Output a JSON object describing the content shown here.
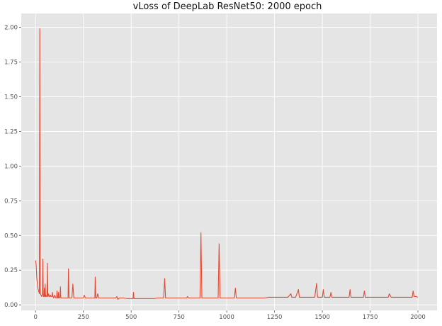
{
  "chart_data": {
    "type": "line",
    "title": "vLoss of DeepLab ResNet50: 2000 epoch",
    "xlabel": "",
    "ylabel": "",
    "xlim": [
      -75,
      2100
    ],
    "ylim": [
      -0.04,
      2.1
    ],
    "x_ticks": [
      0,
      250,
      500,
      750,
      1000,
      1250,
      1500,
      1750,
      2000
    ],
    "x_tick_labels": [
      "0",
      "250",
      "500",
      "750",
      "1000",
      "1250",
      "1500",
      "1750",
      "2000"
    ],
    "y_ticks": [
      0.0,
      0.25,
      0.5,
      0.75,
      1.0,
      1.25,
      1.5,
      1.75,
      2.0
    ],
    "y_tick_labels": [
      "0.00",
      "0.25",
      "0.50",
      "0.75",
      "1.00",
      "1.25",
      "1.50",
      "1.75",
      "2.00"
    ],
    "grid": true,
    "style": "ggplot",
    "colors": {
      "panel": "#e5e5e5",
      "grid": "#ffffff",
      "line": "#e24a33"
    },
    "series": [
      {
        "color": "#e24a33",
        "x": [
          0,
          2,
          4,
          6,
          8,
          10,
          12,
          14,
          16,
          18,
          20,
          22,
          24,
          26,
          28,
          30,
          32,
          34,
          36,
          38,
          40,
          42,
          44,
          46,
          48,
          50,
          52,
          54,
          56,
          58,
          60,
          62,
          64,
          66,
          68,
          70,
          72,
          74,
          76,
          78,
          80,
          85,
          88,
          90,
          92,
          95,
          100,
          105,
          110,
          112,
          115,
          118,
          120,
          122,
          125,
          128,
          130,
          132,
          135,
          140,
          150,
          160,
          170,
          172,
          175,
          180,
          190,
          195,
          200,
          210,
          220,
          230,
          240,
          250,
          255,
          260,
          270,
          280,
          290,
          300,
          310,
          312,
          315,
          320,
          325,
          330,
          340,
          350,
          360,
          370,
          380,
          390,
          400,
          410,
          420,
          425,
          430,
          440,
          450,
          460,
          480,
          500,
          510,
          512,
          515,
          520,
          540,
          560,
          580,
          600,
          620,
          640,
          660,
          670,
          675,
          680,
          700,
          720,
          740,
          760,
          780,
          790,
          795,
          800,
          820,
          840,
          860,
          865,
          870,
          880,
          900,
          920,
          940,
          955,
          960,
          965,
          980,
          1000,
          1020,
          1040,
          1045,
          1050,
          1060,
          1080,
          1100,
          1120,
          1140,
          1160,
          1180,
          1200,
          1220,
          1240,
          1260,
          1280,
          1300,
          1320,
          1335,
          1340,
          1345,
          1360,
          1375,
          1380,
          1385,
          1400,
          1420,
          1440,
          1460,
          1470,
          1475,
          1480,
          1500,
          1505,
          1510,
          1520,
          1540,
          1545,
          1550,
          1560,
          1580,
          1600,
          1620,
          1640,
          1645,
          1650,
          1660,
          1680,
          1700,
          1715,
          1720,
          1725,
          1740,
          1760,
          1780,
          1800,
          1820,
          1840,
          1845,
          1850,
          1860,
          1880,
          1900,
          1920,
          1940,
          1960,
          1970,
          1975,
          1980,
          1990,
          2000
        ],
        "y": [
          0.32,
          0.3,
          0.26,
          0.2,
          0.17,
          0.14,
          0.12,
          0.11,
          0.1,
          0.09,
          0.08,
          1.99,
          0.09,
          0.08,
          0.07,
          0.07,
          0.06,
          0.07,
          0.08,
          0.33,
          0.07,
          0.06,
          0.06,
          0.12,
          0.06,
          0.15,
          0.06,
          0.07,
          0.06,
          0.06,
          0.07,
          0.3,
          0.06,
          0.07,
          0.08,
          0.06,
          0.06,
          0.06,
          0.07,
          0.07,
          0.06,
          0.06,
          0.09,
          0.06,
          0.06,
          0.05,
          0.07,
          0.05,
          0.05,
          0.1,
          0.05,
          0.05,
          0.09,
          0.05,
          0.05,
          0.06,
          0.13,
          0.05,
          0.05,
          0.05,
          0.05,
          0.05,
          0.05,
          0.26,
          0.05,
          0.05,
          0.05,
          0.15,
          0.05,
          0.05,
          0.05,
          0.05,
          0.05,
          0.05,
          0.07,
          0.05,
          0.05,
          0.05,
          0.05,
          0.05,
          0.05,
          0.2,
          0.05,
          0.05,
          0.08,
          0.05,
          0.05,
          0.05,
          0.05,
          0.05,
          0.05,
          0.05,
          0.05,
          0.05,
          0.05,
          0.06,
          0.04,
          0.05,
          0.05,
          0.05,
          0.045,
          0.045,
          0.045,
          0.09,
          0.045,
          0.045,
          0.045,
          0.045,
          0.045,
          0.045,
          0.045,
          0.05,
          0.05,
          0.05,
          0.19,
          0.05,
          0.05,
          0.05,
          0.05,
          0.05,
          0.05,
          0.05,
          0.06,
          0.05,
          0.05,
          0.05,
          0.05,
          0.52,
          0.05,
          0.05,
          0.05,
          0.05,
          0.05,
          0.05,
          0.44,
          0.05,
          0.05,
          0.05,
          0.05,
          0.05,
          0.12,
          0.05,
          0.05,
          0.05,
          0.05,
          0.05,
          0.05,
          0.05,
          0.05,
          0.05,
          0.055,
          0.055,
          0.055,
          0.055,
          0.055,
          0.055,
          0.08,
          0.055,
          0.055,
          0.055,
          0.11,
          0.055,
          0.055,
          0.055,
          0.055,
          0.055,
          0.055,
          0.155,
          0.055,
          0.055,
          0.055,
          0.11,
          0.055,
          0.055,
          0.055,
          0.09,
          0.055,
          0.055,
          0.055,
          0.055,
          0.055,
          0.055,
          0.11,
          0.055,
          0.055,
          0.055,
          0.055,
          0.055,
          0.1,
          0.055,
          0.055,
          0.055,
          0.055,
          0.055,
          0.055,
          0.055,
          0.055,
          0.08,
          0.055,
          0.055,
          0.055,
          0.055,
          0.055,
          0.055,
          0.055,
          0.1,
          0.06,
          0.06,
          0.055
        ]
      }
    ]
  }
}
